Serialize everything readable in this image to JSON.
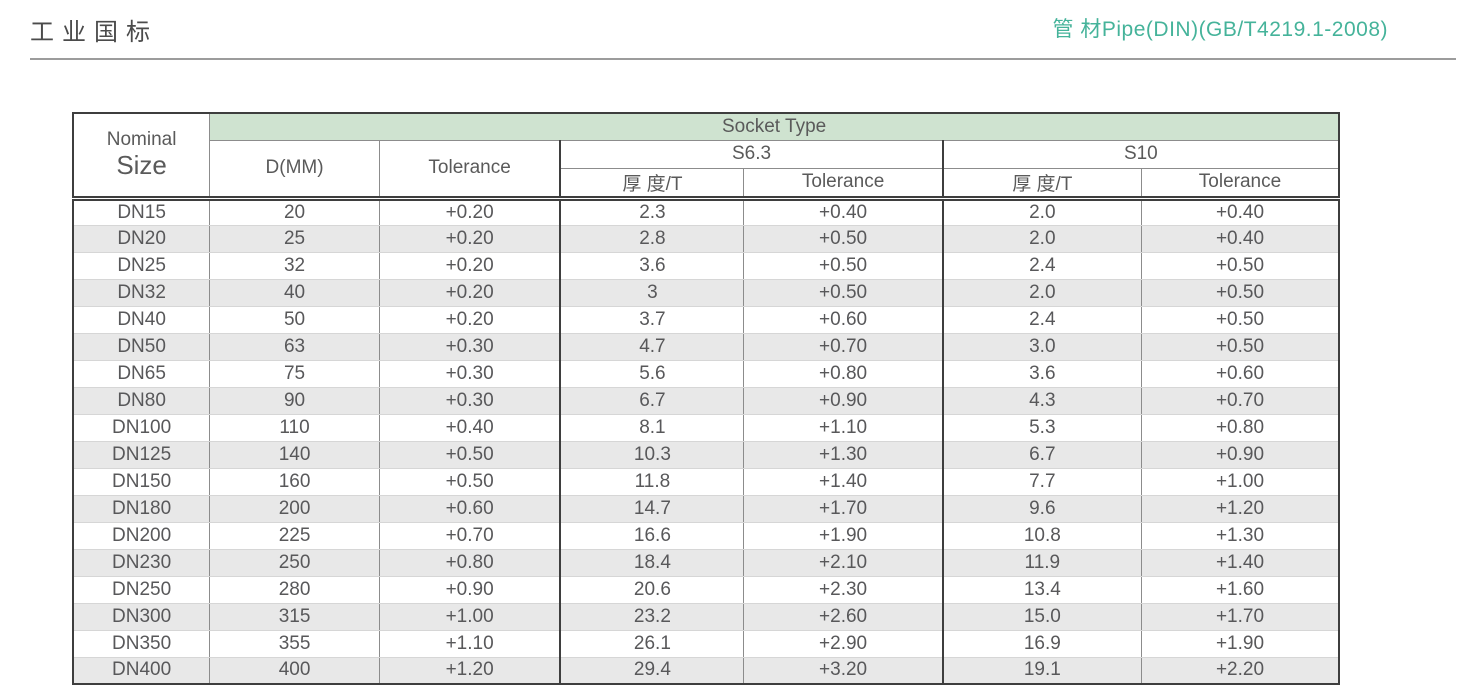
{
  "page": {
    "title": "工业国标",
    "doc_ref": "管 材Pipe(DIN)(GB/T4219.1-2008)"
  },
  "colors": {
    "accent_teal": "#45b39a",
    "socket_band_green": "#cfe3d0",
    "row_stripe_gray": "#e8e8e8",
    "border_dark": "#3e3e3e",
    "border_light": "#8c8c8c",
    "text_gray": "#58585a"
  },
  "table": {
    "header": {
      "nominal_line1": "Nominal",
      "nominal_line2": "Size",
      "socket_type": "Socket Type",
      "d_mm": "D(MM)",
      "d_tolerance": "Tolerance",
      "s63": "S6.3",
      "s10": "S10",
      "s63_thickness": "厚 度/T",
      "s63_tolerance": "Tolerance",
      "s10_thickness": "厚 度/T",
      "s10_tolerance": "Tolerance"
    },
    "columns": [
      "nominal_size",
      "d_mm",
      "d_tolerance",
      "s63_thickness",
      "s63_tolerance",
      "s10_thickness",
      "s10_tolerance"
    ],
    "rows": [
      {
        "nominal_size": "DN15",
        "d_mm": "20",
        "d_tolerance": "+0.20",
        "s63_thickness": "2.3",
        "s63_tolerance": "+0.40",
        "s10_thickness": "2.0",
        "s10_tolerance": "+0.40"
      },
      {
        "nominal_size": "DN20",
        "d_mm": "25",
        "d_tolerance": "+0.20",
        "s63_thickness": "2.8",
        "s63_tolerance": "+0.50",
        "s10_thickness": "2.0",
        "s10_tolerance": "+0.40"
      },
      {
        "nominal_size": "DN25",
        "d_mm": "32",
        "d_tolerance": "+0.20",
        "s63_thickness": "3.6",
        "s63_tolerance": "+0.50",
        "s10_thickness": "2.4",
        "s10_tolerance": "+0.50"
      },
      {
        "nominal_size": "DN32",
        "d_mm": "40",
        "d_tolerance": "+0.20",
        "s63_thickness": "3",
        "s63_tolerance": "+0.50",
        "s10_thickness": "2.0",
        "s10_tolerance": "+0.50"
      },
      {
        "nominal_size": "DN40",
        "d_mm": "50",
        "d_tolerance": "+0.20",
        "s63_thickness": "3.7",
        "s63_tolerance": "+0.60",
        "s10_thickness": "2.4",
        "s10_tolerance": "+0.50"
      },
      {
        "nominal_size": "DN50",
        "d_mm": "63",
        "d_tolerance": "+0.30",
        "s63_thickness": "4.7",
        "s63_tolerance": "+0.70",
        "s10_thickness": "3.0",
        "s10_tolerance": "+0.50"
      },
      {
        "nominal_size": "DN65",
        "d_mm": "75",
        "d_tolerance": "+0.30",
        "s63_thickness": "5.6",
        "s63_tolerance": "+0.80",
        "s10_thickness": "3.6",
        "s10_tolerance": "+0.60"
      },
      {
        "nominal_size": "DN80",
        "d_mm": "90",
        "d_tolerance": "+0.30",
        "s63_thickness": "6.7",
        "s63_tolerance": "+0.90",
        "s10_thickness": "4.3",
        "s10_tolerance": "+0.70"
      },
      {
        "nominal_size": "DN100",
        "d_mm": "110",
        "d_tolerance": "+0.40",
        "s63_thickness": "8.1",
        "s63_tolerance": "+1.10",
        "s10_thickness": "5.3",
        "s10_tolerance": "+0.80"
      },
      {
        "nominal_size": "DN125",
        "d_mm": "140",
        "d_tolerance": "+0.50",
        "s63_thickness": "10.3",
        "s63_tolerance": "+1.30",
        "s10_thickness": "6.7",
        "s10_tolerance": "+0.90"
      },
      {
        "nominal_size": "DN150",
        "d_mm": "160",
        "d_tolerance": "+0.50",
        "s63_thickness": "11.8",
        "s63_tolerance": "+1.40",
        "s10_thickness": "7.7",
        "s10_tolerance": "+1.00"
      },
      {
        "nominal_size": "DN180",
        "d_mm": "200",
        "d_tolerance": "+0.60",
        "s63_thickness": "14.7",
        "s63_tolerance": "+1.70",
        "s10_thickness": "9.6",
        "s10_tolerance": "+1.20"
      },
      {
        "nominal_size": "DN200",
        "d_mm": "225",
        "d_tolerance": "+0.70",
        "s63_thickness": "16.6",
        "s63_tolerance": "+1.90",
        "s10_thickness": "10.8",
        "s10_tolerance": "+1.30"
      },
      {
        "nominal_size": "DN230",
        "d_mm": "250",
        "d_tolerance": "+0.80",
        "s63_thickness": "18.4",
        "s63_tolerance": "+2.10",
        "s10_thickness": "11.9",
        "s10_tolerance": "+1.40"
      },
      {
        "nominal_size": "DN250",
        "d_mm": "280",
        "d_tolerance": "+0.90",
        "s63_thickness": "20.6",
        "s63_tolerance": "+2.30",
        "s10_thickness": "13.4",
        "s10_tolerance": "+1.60"
      },
      {
        "nominal_size": "DN300",
        "d_mm": "315",
        "d_tolerance": "+1.00",
        "s63_thickness": "23.2",
        "s63_tolerance": "+2.60",
        "s10_thickness": "15.0",
        "s10_tolerance": "+1.70"
      },
      {
        "nominal_size": "DN350",
        "d_mm": "355",
        "d_tolerance": "+1.10",
        "s63_thickness": "26.1",
        "s63_tolerance": "+2.90",
        "s10_thickness": "16.9",
        "s10_tolerance": "+1.90"
      },
      {
        "nominal_size": "DN400",
        "d_mm": "400",
        "d_tolerance": "+1.20",
        "s63_thickness": "29.4",
        "s63_tolerance": "+3.20",
        "s10_thickness": "19.1",
        "s10_tolerance": "+2.20"
      }
    ]
  }
}
